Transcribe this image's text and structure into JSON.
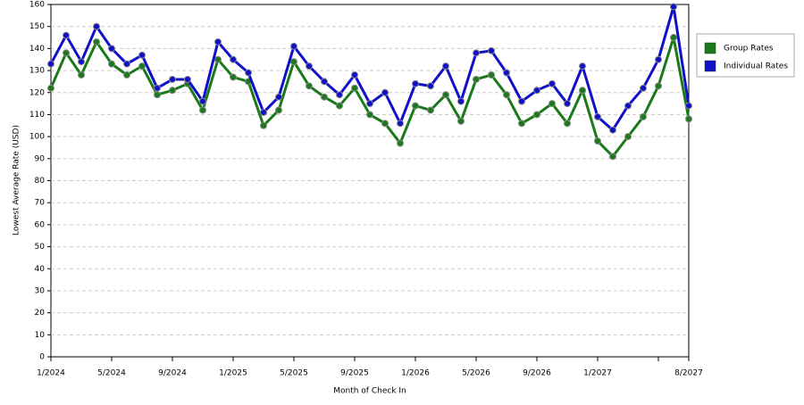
{
  "chart_data": {
    "type": "line",
    "x_label": "Month of Check In",
    "y_label": "Lowest Average Rate (USD)",
    "categories": [
      "1/2024",
      null,
      null,
      null,
      "5/2024",
      null,
      null,
      null,
      "9/2024",
      null,
      null,
      null,
      "1/2025",
      null,
      null,
      null,
      "5/2025",
      null,
      null,
      null,
      "9/2025",
      null,
      null,
      null,
      "1/2026",
      null,
      null,
      null,
      "5/2026",
      null,
      null,
      null,
      "9/2026",
      null,
      null,
      null,
      "1/2027",
      null,
      null,
      null,
      null,
      null,
      "8/2027"
    ],
    "series": [
      {
        "name": "Group Rates",
        "color": "#1a7a1a",
        "values": [
          122,
          138,
          128,
          143,
          133,
          128,
          132,
          119,
          121,
          124,
          112,
          135,
          127,
          125,
          105,
          112,
          134,
          123,
          118,
          114,
          122,
          110,
          106,
          97,
          114,
          112,
          119,
          107,
          126,
          128,
          119,
          106,
          110,
          115,
          106,
          121,
          98,
          91,
          100,
          109,
          123,
          145,
          108
        ]
      },
      {
        "name": "Individual Rates",
        "color": "#1010c8",
        "values": [
          133,
          146,
          134,
          150,
          140,
          133,
          137,
          122,
          126,
          126,
          116,
          143,
          135,
          129,
          111,
          118,
          141,
          132,
          125,
          119,
          128,
          115,
          120,
          106,
          124,
          123,
          132,
          116,
          138,
          139,
          129,
          116,
          121,
          124,
          115,
          132,
          109,
          103,
          114,
          122,
          135,
          159,
          114
        ]
      }
    ],
    "ylim": [
      0,
      160
    ],
    "yticks": [
      0,
      10,
      20,
      30,
      40,
      50,
      60,
      70,
      80,
      90,
      100,
      110,
      120,
      130,
      140,
      150,
      160
    ],
    "grid": true
  }
}
